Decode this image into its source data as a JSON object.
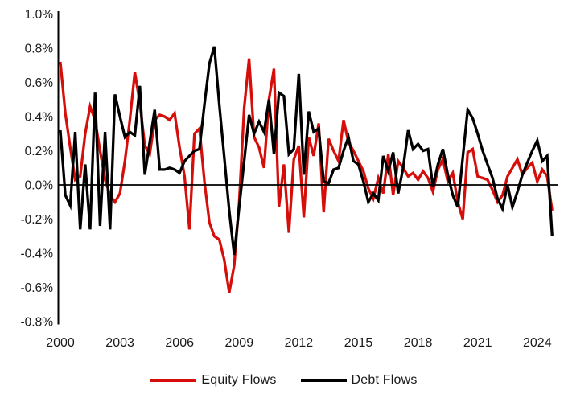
{
  "chart_data": {
    "type": "line",
    "title": "",
    "x_tick_labels": [
      "2000",
      "2003",
      "2006",
      "2009",
      "2012",
      "2015",
      "2018",
      "2021",
      "2024"
    ],
    "y_tick_labels": [
      "1.0%",
      "0.8%",
      "0.6%",
      "0.4%",
      "0.2%",
      "0.0%",
      "-0.2%",
      "-0.4%",
      "-0.6%",
      "-0.8%"
    ],
    "ylim": [
      -0.8,
      1.0
    ],
    "y_tick_step": 0.2,
    "unit": "%",
    "grid": false,
    "frequency": "quarterly",
    "x_range_years": [
      2000.0,
      2024.75
    ],
    "legend_position": "bottom",
    "zero_axis_line": true,
    "axis_color": "#000000",
    "text_color": "#1a1a1a",
    "series": [
      {
        "name": "Equity Flows",
        "color": "#d60e0a",
        "values": [
          0.72,
          0.42,
          0.22,
          0.03,
          0.05,
          0.3,
          0.46,
          0.38,
          0.2,
          0.03,
          -0.06,
          -0.1,
          -0.05,
          0.14,
          0.38,
          0.66,
          0.48,
          0.23,
          0.18,
          0.38,
          0.41,
          0.4,
          0.38,
          0.42,
          0.22,
          0.05,
          -0.26,
          0.3,
          0.33,
          0.02,
          -0.22,
          -0.3,
          -0.32,
          -0.44,
          -0.63,
          -0.47,
          -0.1,
          0.45,
          0.74,
          0.28,
          0.22,
          0.1,
          0.5,
          0.68,
          -0.13,
          0.12,
          -0.28,
          0.15,
          0.23,
          -0.19,
          0.28,
          0.17,
          0.36,
          -0.16,
          0.27,
          0.2,
          0.14,
          0.38,
          0.25,
          0.2,
          0.14,
          0.08,
          -0.02,
          -0.08,
          0.04,
          -0.05,
          0.18,
          -0.06,
          0.14,
          0.1,
          0.05,
          0.07,
          0.03,
          0.08,
          0.04,
          -0.04,
          0.09,
          0.15,
          0.02,
          0.07,
          -0.1,
          -0.2,
          0.19,
          0.21,
          0.05,
          0.04,
          0.03,
          -0.03,
          -0.1,
          -0.06,
          0.05,
          0.1,
          0.15,
          0.06,
          0.1,
          0.13,
          0.02,
          0.09,
          0.05,
          -0.15
        ]
      },
      {
        "name": "Debt Flows",
        "color": "#000000",
        "values": [
          0.32,
          -0.06,
          -0.12,
          0.31,
          -0.26,
          0.12,
          -0.26,
          0.54,
          -0.24,
          0.31,
          -0.26,
          0.53,
          0.4,
          0.28,
          0.31,
          0.29,
          0.58,
          0.06,
          0.25,
          0.44,
          0.09,
          0.09,
          0.1,
          0.09,
          0.07,
          0.14,
          0.17,
          0.2,
          0.21,
          0.47,
          0.71,
          0.81,
          0.47,
          0.16,
          -0.15,
          -0.41,
          -0.13,
          0.14,
          0.41,
          0.3,
          0.37,
          0.31,
          0.5,
          0.18,
          0.54,
          0.52,
          0.18,
          0.21,
          0.65,
          0.06,
          0.43,
          0.31,
          0.33,
          0.02,
          0.01,
          0.09,
          0.1,
          0.2,
          0.28,
          0.14,
          0.12,
          0.02,
          -0.1,
          -0.05,
          -0.09,
          0.17,
          0.08,
          0.19,
          -0.05,
          0.1,
          0.32,
          0.21,
          0.24,
          0.2,
          0.21,
          -0.01,
          0.12,
          0.21,
          0.06,
          -0.06,
          -0.13,
          0.16,
          0.44,
          0.39,
          0.3,
          0.2,
          0.12,
          0.04,
          -0.08,
          -0.14,
          0.0,
          -0.13,
          -0.04,
          0.06,
          0.13,
          0.2,
          0.26,
          0.14,
          0.17,
          -0.3
        ]
      }
    ]
  },
  "legend": {
    "equity_label": "Equity Flows",
    "debt_label": "Debt Flows"
  }
}
